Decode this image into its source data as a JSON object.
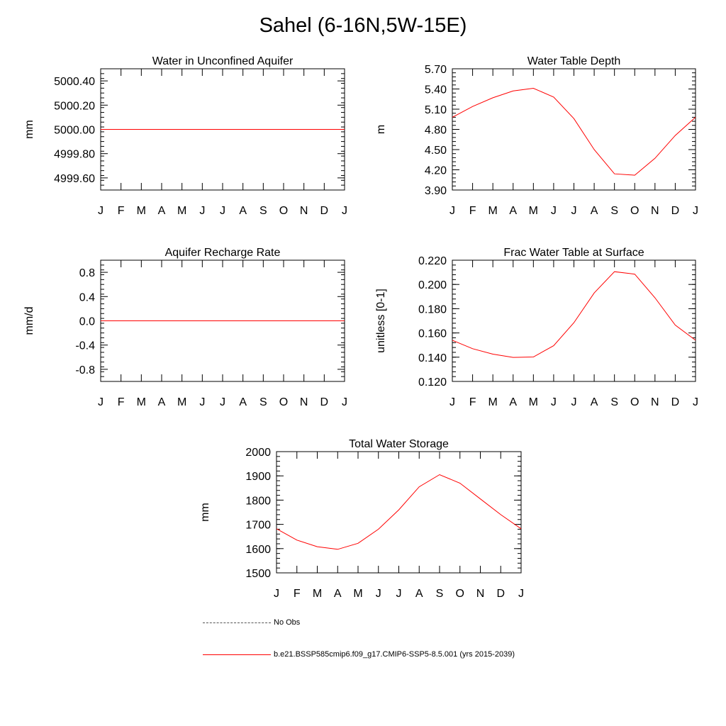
{
  "page": {
    "title": "Sahel (6-16N,5W-15E)"
  },
  "legend": {
    "items": [
      {
        "label": "No Obs",
        "style": "dashed",
        "color": "#555555"
      },
      {
        "label": "b.e21.BSSP585cmip6.f09_g17.CMIP6-SSP5-8.5.001 (yrs 2015-2039)",
        "style": "solid",
        "color": "#ff0000"
      }
    ]
  },
  "colors": {
    "series": "#ff0000",
    "axis": "#000000"
  },
  "chart_data": [
    {
      "id": "water-unconfined-aquifer",
      "type": "line",
      "title": "Water in Unconfined Aquifer",
      "ylabel": "mm",
      "categories": [
        "J",
        "F",
        "M",
        "A",
        "M",
        "J",
        "J",
        "A",
        "S",
        "O",
        "N",
        "D",
        "J"
      ],
      "ylim": [
        4999.5,
        5000.5
      ],
      "yticks": [
        4999.6,
        4999.8,
        5000.0,
        5000.2,
        5000.4
      ],
      "ytick_labels": [
        "4999.60",
        "4999.80",
        "5000.00",
        "5000.20",
        "5000.40"
      ],
      "series": [
        {
          "name": "b.e21.BSSP585cmip6.f09_g17.CMIP6-SSP5-8.5.001 (yrs 2015-2039)",
          "values": [
            5000,
            5000,
            5000,
            5000,
            5000,
            5000,
            5000,
            5000,
            5000,
            5000,
            5000,
            5000,
            5000
          ]
        }
      ]
    },
    {
      "id": "water-table-depth",
      "type": "line",
      "title": "Water Table Depth",
      "ylabel": "m",
      "categories": [
        "J",
        "F",
        "M",
        "A",
        "M",
        "J",
        "J",
        "A",
        "S",
        "O",
        "N",
        "D",
        "J"
      ],
      "ylim": [
        3.9,
        5.7
      ],
      "yticks": [
        3.9,
        4.2,
        4.5,
        4.8,
        5.1,
        5.4,
        5.7
      ],
      "ytick_labels": [
        "3.90",
        "4.20",
        "4.50",
        "4.80",
        "5.10",
        "5.40",
        "5.70"
      ],
      "series": [
        {
          "name": "b.e21.BSSP585cmip6.f09_g17.CMIP6-SSP5-8.5.001 (yrs 2015-2039)",
          "values": [
            4.98,
            5.14,
            5.27,
            5.37,
            5.41,
            5.28,
            4.96,
            4.5,
            4.14,
            4.12,
            4.37,
            4.71,
            4.98
          ]
        }
      ]
    },
    {
      "id": "aquifer-recharge-rate",
      "type": "line",
      "title": "Aquifer Recharge Rate",
      "ylabel": "mm/d",
      "categories": [
        "J",
        "F",
        "M",
        "A",
        "M",
        "J",
        "J",
        "A",
        "S",
        "O",
        "N",
        "D",
        "J"
      ],
      "ylim": [
        -1.0,
        1.0
      ],
      "yticks": [
        -0.8,
        -0.4,
        0.0,
        0.4,
        0.8
      ],
      "ytick_labels": [
        "-0.8",
        "-0.4",
        "0.0",
        "0.4",
        "0.8"
      ],
      "series": [
        {
          "name": "b.e21.BSSP585cmip6.f09_g17.CMIP6-SSP5-8.5.001 (yrs 2015-2039)",
          "values": [
            0,
            0,
            0,
            0,
            0,
            0,
            0,
            0,
            0,
            0,
            0,
            0,
            0
          ]
        }
      ]
    },
    {
      "id": "frac-water-table-surface",
      "type": "line",
      "title": "Frac Water Table at Surface",
      "ylabel": "unitless [0-1]",
      "categories": [
        "J",
        "F",
        "M",
        "A",
        "M",
        "J",
        "J",
        "A",
        "S",
        "O",
        "N",
        "D",
        "J"
      ],
      "ylim": [
        0.12,
        0.22
      ],
      "yticks": [
        0.12,
        0.14,
        0.16,
        0.18,
        0.2,
        0.22
      ],
      "ytick_labels": [
        "0.120",
        "0.140",
        "0.160",
        "0.180",
        "0.200",
        "0.220"
      ],
      "series": [
        {
          "name": "b.e21.BSSP585cmip6.f09_g17.CMIP6-SSP5-8.5.001 (yrs 2015-2039)",
          "values": [
            0.154,
            0.147,
            0.1425,
            0.1398,
            0.1402,
            0.1495,
            0.1685,
            0.193,
            0.2105,
            0.2085,
            0.189,
            0.1665,
            0.154
          ]
        }
      ]
    },
    {
      "id": "total-water-storage",
      "type": "line",
      "title": "Total Water Storage",
      "ylabel": "mm",
      "categories": [
        "J",
        "F",
        "M",
        "A",
        "M",
        "J",
        "J",
        "A",
        "S",
        "O",
        "N",
        "D",
        "J"
      ],
      "ylim": [
        1500,
        2000
      ],
      "yticks": [
        1500,
        1600,
        1700,
        1800,
        1900,
        2000
      ],
      "ytick_labels": [
        "1500",
        "1600",
        "1700",
        "1800",
        "1900",
        "2000"
      ],
      "series": [
        {
          "name": "b.e21.BSSP585cmip6.f09_g17.CMIP6-SSP5-8.5.001 (yrs 2015-2039)",
          "values": [
            1682,
            1635,
            1608,
            1597,
            1622,
            1680,
            1760,
            1855,
            1905,
            1870,
            1805,
            1740,
            1682
          ]
        }
      ]
    }
  ]
}
